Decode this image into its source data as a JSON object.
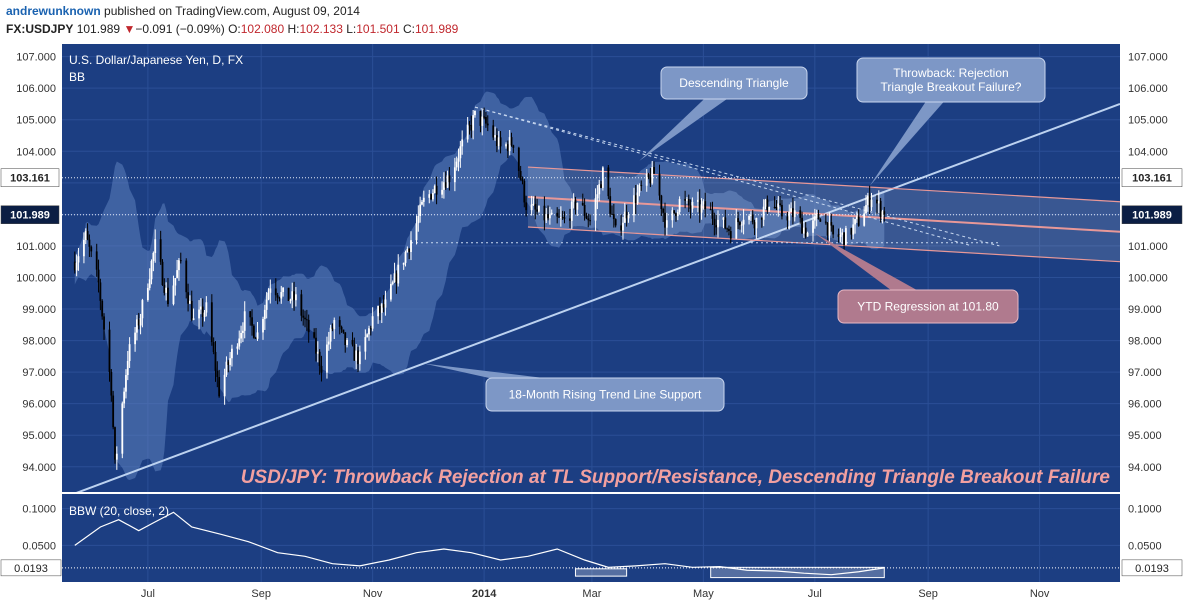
{
  "header": {
    "author": "andrewunknown",
    "published": "published on TradingView.com, August 09, 2014",
    "symbol": "FX:USDJPY",
    "last": "101.989",
    "change_arrow": "▼",
    "change": "−0.091 (−0.09%)",
    "o_label": "O:",
    "o_value": "102.080",
    "h_label": "H:",
    "h_value": "102.133",
    "l_label": "L:",
    "l_value": "101.501",
    "c_label": "C:",
    "c_value": "101.989"
  },
  "colors": {
    "chart_bg": "#1c3e82",
    "band": "#5d7fbd",
    "trend_line": "#bcd2f0",
    "regression_channel": "#e89898",
    "annotation_box": "#7d97c6",
    "ytd_box": "#b07a8e",
    "headline": "#f2a0a0",
    "up_candle": "#ffffff",
    "down_candle": "#000000"
  },
  "chart_data": [
    {
      "type": "candlestick",
      "title": "U.S. Dollar/Japanese Yen, D, FX",
      "indicator_label": "BB",
      "headline": "USD/JPY: Throwback Rejection at TL Support/Resistance, Descending Triangle Breakout Failure",
      "ylim": [
        93.2,
        107.4
      ],
      "y_ticks": [
        "94.000",
        "95.000",
        "96.000",
        "97.000",
        "98.000",
        "99.000",
        "100.000",
        "101.000",
        "102.000",
        "103.000",
        "104.000",
        "105.000",
        "106.000",
        "107.000"
      ],
      "x_ticks": [
        "Jul",
        "Sep",
        "Nov",
        "2014",
        "Mar",
        "May",
        "Jul",
        "Sep",
        "Nov"
      ],
      "x_tick_values": [
        "2013-07-01",
        "2013-09-01",
        "2013-11-01",
        "2014-01-01",
        "2014-03-01",
        "2014-05-01",
        "2014-07-01",
        "2014-09-01",
        "2014-11-01"
      ],
      "price_levels": [
        {
          "label": "103.161",
          "value": 103.161
        },
        {
          "label": "101.989",
          "value": 101.989
        }
      ],
      "close_series": [
        {
          "date": "2013-05-22",
          "close": 100.5
        },
        {
          "date": "2013-05-28",
          "close": 101.3
        },
        {
          "date": "2013-06-04",
          "close": 99.8
        },
        {
          "date": "2013-06-11",
          "close": 96.5
        },
        {
          "date": "2013-06-13",
          "close": 94.0
        },
        {
          "date": "2013-06-20",
          "close": 97.5
        },
        {
          "date": "2013-06-27",
          "close": 98.8
        },
        {
          "date": "2013-07-05",
          "close": 101.0
        },
        {
          "date": "2013-07-12",
          "close": 99.3
        },
        {
          "date": "2013-07-19",
          "close": 100.5
        },
        {
          "date": "2013-07-26",
          "close": 98.6
        },
        {
          "date": "2013-08-02",
          "close": 99.0
        },
        {
          "date": "2013-08-09",
          "close": 96.4
        },
        {
          "date": "2013-08-16",
          "close": 97.6
        },
        {
          "date": "2013-08-23",
          "close": 98.7
        },
        {
          "date": "2013-08-30",
          "close": 98.2
        },
        {
          "date": "2013-09-06",
          "close": 99.8
        },
        {
          "date": "2013-09-13",
          "close": 99.4
        },
        {
          "date": "2013-09-20",
          "close": 99.3
        },
        {
          "date": "2013-09-27",
          "close": 98.3
        },
        {
          "date": "2013-10-04",
          "close": 97.2
        },
        {
          "date": "2013-10-11",
          "close": 98.6
        },
        {
          "date": "2013-10-18",
          "close": 97.8
        },
        {
          "date": "2013-10-25",
          "close": 97.4
        },
        {
          "date": "2013-11-01",
          "close": 98.7
        },
        {
          "date": "2013-11-08",
          "close": 99.1
        },
        {
          "date": "2013-11-15",
          "close": 100.2
        },
        {
          "date": "2013-11-22",
          "close": 101.2
        },
        {
          "date": "2013-11-29",
          "close": 102.4
        },
        {
          "date": "2013-12-06",
          "close": 102.9
        },
        {
          "date": "2013-12-13",
          "close": 103.2
        },
        {
          "date": "2013-12-20",
          "close": 104.2
        },
        {
          "date": "2013-12-27",
          "close": 105.1
        },
        {
          "date": "2014-01-03",
          "close": 104.8
        },
        {
          "date": "2014-01-10",
          "close": 104.1
        },
        {
          "date": "2014-01-17",
          "close": 104.3
        },
        {
          "date": "2014-01-24",
          "close": 102.3
        },
        {
          "date": "2014-01-31",
          "close": 102.0
        },
        {
          "date": "2014-02-07",
          "close": 101.8
        },
        {
          "date": "2014-02-14",
          "close": 101.8
        },
        {
          "date": "2014-02-21",
          "close": 102.4
        },
        {
          "date": "2014-02-28",
          "close": 101.8
        },
        {
          "date": "2014-03-07",
          "close": 103.3
        },
        {
          "date": "2014-03-14",
          "close": 101.4
        },
        {
          "date": "2014-03-21",
          "close": 102.2
        },
        {
          "date": "2014-03-28",
          "close": 102.8
        },
        {
          "date": "2014-04-04",
          "close": 103.3
        },
        {
          "date": "2014-04-11",
          "close": 101.6
        },
        {
          "date": "2014-04-18",
          "close": 102.4
        },
        {
          "date": "2014-04-25",
          "close": 102.2
        },
        {
          "date": "2014-05-02",
          "close": 102.2
        },
        {
          "date": "2014-05-09",
          "close": 101.8
        },
        {
          "date": "2014-05-16",
          "close": 101.5
        },
        {
          "date": "2014-05-23",
          "close": 102.0
        },
        {
          "date": "2014-05-30",
          "close": 101.8
        },
        {
          "date": "2014-06-06",
          "close": 102.4
        },
        {
          "date": "2014-06-13",
          "close": 102.0
        },
        {
          "date": "2014-06-20",
          "close": 102.0
        },
        {
          "date": "2014-06-27",
          "close": 101.4
        },
        {
          "date": "2014-07-04",
          "close": 102.0
        },
        {
          "date": "2014-07-11",
          "close": 101.3
        },
        {
          "date": "2014-07-18",
          "close": 101.3
        },
        {
          "date": "2014-07-25",
          "close": 101.8
        },
        {
          "date": "2014-08-01",
          "close": 102.6
        },
        {
          "date": "2014-08-08",
          "close": 101.989
        }
      ],
      "bbw_indicator": {
        "label": "BBW (20, close, 2)",
        "ylim": [
          0,
          0.12
        ],
        "y_ticks": [
          "0.0500",
          "0.1000"
        ],
        "level_label": "0.0193",
        "level_value": 0.0193,
        "series": [
          {
            "date": "2013-05-22",
            "value": 0.05
          },
          {
            "date": "2013-06-05",
            "value": 0.075
          },
          {
            "date": "2013-06-15",
            "value": 0.085
          },
          {
            "date": "2013-06-26",
            "value": 0.07
          },
          {
            "date": "2013-07-05",
            "value": 0.082
          },
          {
            "date": "2013-07-15",
            "value": 0.095
          },
          {
            "date": "2013-07-25",
            "value": 0.075
          },
          {
            "date": "2013-08-10",
            "value": 0.065
          },
          {
            "date": "2013-08-25",
            "value": 0.055
          },
          {
            "date": "2013-09-10",
            "value": 0.04
          },
          {
            "date": "2013-09-25",
            "value": 0.035
          },
          {
            "date": "2013-10-10",
            "value": 0.025
          },
          {
            "date": "2013-10-25",
            "value": 0.022
          },
          {
            "date": "2013-11-10",
            "value": 0.03
          },
          {
            "date": "2013-11-25",
            "value": 0.04
          },
          {
            "date": "2013-12-10",
            "value": 0.045
          },
          {
            "date": "2013-12-25",
            "value": 0.04
          },
          {
            "date": "2014-01-10",
            "value": 0.03
          },
          {
            "date": "2014-01-25",
            "value": 0.035
          },
          {
            "date": "2014-02-10",
            "value": 0.045
          },
          {
            "date": "2014-02-25",
            "value": 0.03
          },
          {
            "date": "2014-03-10",
            "value": 0.02
          },
          {
            "date": "2014-03-25",
            "value": 0.022
          },
          {
            "date": "2014-04-10",
            "value": 0.025
          },
          {
            "date": "2014-04-25",
            "value": 0.02
          },
          {
            "date": "2014-05-10",
            "value": 0.021
          },
          {
            "date": "2014-05-25",
            "value": 0.016
          },
          {
            "date": "2014-06-10",
            "value": 0.015
          },
          {
            "date": "2014-06-25",
            "value": 0.012
          },
          {
            "date": "2014-07-10",
            "value": 0.01
          },
          {
            "date": "2014-07-25",
            "value": 0.014
          },
          {
            "date": "2014-08-08",
            "value": 0.0193
          }
        ]
      },
      "annotations": [
        {
          "id": "descending-triangle",
          "text": [
            "Descending Triangle"
          ]
        },
        {
          "id": "throwback",
          "text": [
            "Throwback: Rejection",
            "Triangle Breakout Failure?"
          ]
        },
        {
          "id": "ytd-regression",
          "text": [
            "YTD Regression at 101.80"
          ]
        },
        {
          "id": "rising-trend-line",
          "text": [
            "18-Month Rising Trend Line Support"
          ]
        }
      ]
    }
  ]
}
